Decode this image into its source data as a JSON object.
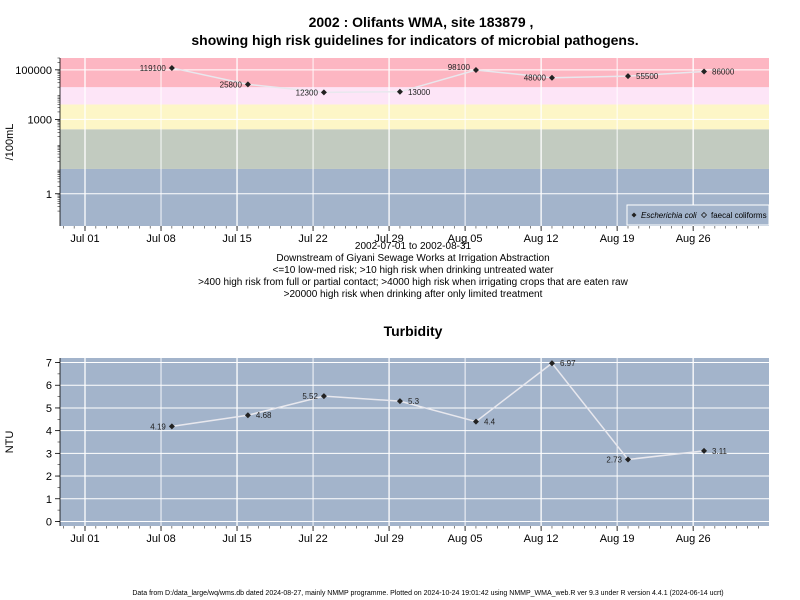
{
  "chart_data": [
    {
      "type": "scatter",
      "title_line1": "2002 : Olifants WMA, site 183879 ,",
      "title_line2": "showing high risk guidelines for indicators of microbial pathogens.",
      "ylabel": "/100mL",
      "y_scale": "log",
      "ylim": [
        0.05,
        300000
      ],
      "y_tick_labels": [
        "1",
        "1000",
        "100000"
      ],
      "y_tick_values": [
        1,
        1000,
        100000
      ],
      "x_tick_labels": [
        "Jul 01",
        "Jul 08",
        "Jul 15",
        "Jul 22",
        "Jul 29",
        "Aug 05",
        "Aug 12",
        "Aug 19",
        "Aug 26"
      ],
      "risk_bands": [
        {
          "from": 0.05,
          "to": 10,
          "color": "#a3b4cb"
        },
        {
          "from": 10,
          "to": 400,
          "color": "#c2cbc0"
        },
        {
          "from": 400,
          "to": 4000,
          "color": "#fdf6c7"
        },
        {
          "from": 4000,
          "to": 20000,
          "color": "#fde5f7"
        },
        {
          "from": 20000,
          "to": 300000,
          "color": "#fdb6c2"
        }
      ],
      "series": [
        {
          "name": "Escherichia coli",
          "x": [
            "2002-07-09",
            "2002-07-16",
            "2002-07-23",
            "2002-07-30",
            "2002-08-06",
            "2002-08-13",
            "2002-08-20",
            "2002-08-27"
          ],
          "values": [
            119100,
            25800,
            12300,
            13000,
            98100,
            48000,
            55500,
            86000
          ],
          "labels": [
            "119100",
            "25800",
            "12300",
            "13000",
            "98100",
            "48000",
            "55500",
            "86000"
          ]
        }
      ],
      "legend": [
        "Escherichia coli",
        "faecal coliforms"
      ],
      "legend_position": "bottom-right",
      "info_lines": [
        "2002-07-01 to 2002-08-31",
        "Downstream of Giyani Sewage Works at Irrigation Abstraction",
        "<=10 low-med risk; >10 high risk when drinking untreated water",
        ">400 high risk from full or partial contact; >4000 high risk when irrigating crops that are eaten raw",
        ">20000 high risk when drinking after only limited treatment"
      ]
    },
    {
      "type": "line",
      "title": "Turbidity",
      "ylabel": "NTU",
      "ylim": [
        -0.2,
        7.2
      ],
      "y_ticks": [
        "0",
        "1",
        "2",
        "3",
        "4",
        "5",
        "6",
        "7"
      ],
      "x_tick_labels": [
        "Jul 01",
        "Jul 08",
        "Jul 15",
        "Jul 22",
        "Jul 29",
        "Aug 05",
        "Aug 12",
        "Aug 19",
        "Aug 26"
      ],
      "series": [
        {
          "name": "",
          "x": [
            "2002-07-09",
            "2002-07-16",
            "2002-07-23",
            "2002-07-30",
            "2002-08-06",
            "2002-08-13",
            "2002-08-20",
            "2002-08-27"
          ],
          "values": [
            4.19,
            4.68,
            5.52,
            5.3,
            4.4,
            6.97,
            2.73,
            3.11
          ],
          "labels": [
            "4.19",
            "4.68",
            "5.52",
            "5.3",
            "4.4",
            "6.97",
            "2.73",
            "3.11"
          ]
        }
      ]
    }
  ],
  "footer": "Data from D:/data_large/wq/wms.db dated 2024-08-27, mainly NMMP programme. Plotted on 2024-10-24 19:01:42 using NMMP_WMA_web.R ver 9.3 under R version 4.4.1 (2024-06-14 ucrt)"
}
